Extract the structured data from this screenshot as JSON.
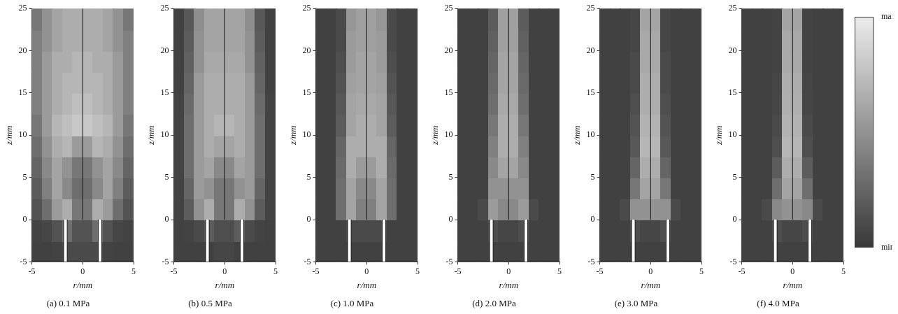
{
  "chart_data": [
    {
      "type": "heatmap",
      "title": "(a) 0.1 MPa",
      "x_label": "r/mm",
      "y_label": "z/mm",
      "xlim": [
        -5,
        5
      ],
      "ylim": [
        -5,
        25
      ],
      "xticks": [
        -5,
        0,
        5
      ],
      "yticks": [
        -5,
        0,
        5,
        10,
        15,
        20,
        25
      ],
      "grid": false,
      "r_edges": [
        -5,
        -4,
        -3,
        -2,
        -1,
        0,
        1,
        2,
        3,
        4,
        5
      ],
      "z_edges": [
        -5,
        -2.5,
        0,
        2.5,
        5,
        7.5,
        10,
        12.5,
        15,
        17.5,
        20,
        22.5,
        25
      ],
      "cells": [
        [
          0.05,
          0.05,
          0.06,
          0.1,
          0.1,
          0.1,
          0.1,
          0.06,
          0.05,
          0.05
        ],
        [
          0.06,
          0.08,
          0.15,
          0.3,
          0.15,
          0.15,
          0.3,
          0.15,
          0.08,
          0.06
        ],
        [
          0.15,
          0.3,
          0.55,
          0.65,
          0.35,
          0.35,
          0.65,
          0.55,
          0.3,
          0.15
        ],
        [
          0.2,
          0.4,
          0.6,
          0.45,
          0.3,
          0.3,
          0.45,
          0.6,
          0.4,
          0.2
        ],
        [
          0.25,
          0.45,
          0.6,
          0.5,
          0.35,
          0.35,
          0.5,
          0.6,
          0.45,
          0.25
        ],
        [
          0.3,
          0.5,
          0.65,
          0.7,
          0.55,
          0.55,
          0.7,
          0.65,
          0.5,
          0.3
        ],
        [
          0.35,
          0.55,
          0.7,
          0.75,
          0.8,
          0.8,
          0.75,
          0.7,
          0.55,
          0.35
        ],
        [
          0.4,
          0.55,
          0.65,
          0.7,
          0.75,
          0.75,
          0.7,
          0.65,
          0.55,
          0.4
        ],
        [
          0.4,
          0.55,
          0.65,
          0.7,
          0.7,
          0.7,
          0.7,
          0.65,
          0.55,
          0.4
        ],
        [
          0.4,
          0.55,
          0.65,
          0.65,
          0.7,
          0.7,
          0.65,
          0.65,
          0.55,
          0.4
        ],
        [
          0.4,
          0.5,
          0.6,
          0.65,
          0.65,
          0.65,
          0.65,
          0.6,
          0.5,
          0.4
        ],
        [
          0.35,
          0.5,
          0.6,
          0.65,
          0.65,
          0.65,
          0.65,
          0.6,
          0.5,
          0.35
        ]
      ],
      "nozzle_walls": {
        "r": [
          -1.7,
          1.7
        ],
        "z": [
          -5,
          0
        ]
      },
      "symmetry_axis": {
        "r": 0,
        "z": [
          0,
          25
        ]
      }
    },
    {
      "type": "heatmap",
      "title": "(b) 0.5 MPa",
      "x_label": "r/mm",
      "y_label": "z/mm",
      "xlim": [
        -5,
        5
      ],
      "ylim": [
        -5,
        25
      ],
      "xticks": [
        -5,
        0,
        5
      ],
      "yticks": [
        -5,
        0,
        5,
        10,
        15,
        20,
        25
      ],
      "grid": false,
      "r_edges": [
        -5,
        -4,
        -3,
        -2,
        -1,
        0,
        1,
        2,
        3,
        4,
        5
      ],
      "z_edges": [
        -5,
        -2.5,
        0,
        2.5,
        5,
        7.5,
        10,
        12.5,
        15,
        17.5,
        20,
        22.5,
        25
      ],
      "cells": [
        [
          0.05,
          0.05,
          0.05,
          0.05,
          0.08,
          0.08,
          0.05,
          0.05,
          0.05,
          0.05
        ],
        [
          0.05,
          0.06,
          0.1,
          0.2,
          0.12,
          0.12,
          0.2,
          0.1,
          0.06,
          0.05
        ],
        [
          0.06,
          0.2,
          0.5,
          0.65,
          0.35,
          0.35,
          0.65,
          0.5,
          0.2,
          0.06
        ],
        [
          0.06,
          0.25,
          0.55,
          0.5,
          0.35,
          0.35,
          0.5,
          0.55,
          0.25,
          0.06
        ],
        [
          0.06,
          0.3,
          0.55,
          0.6,
          0.45,
          0.45,
          0.6,
          0.55,
          0.3,
          0.06
        ],
        [
          0.06,
          0.3,
          0.55,
          0.65,
          0.6,
          0.6,
          0.65,
          0.55,
          0.3,
          0.06
        ],
        [
          0.06,
          0.3,
          0.55,
          0.65,
          0.7,
          0.7,
          0.65,
          0.55,
          0.3,
          0.06
        ],
        [
          0.06,
          0.28,
          0.55,
          0.65,
          0.65,
          0.65,
          0.65,
          0.55,
          0.28,
          0.06
        ],
        [
          0.05,
          0.25,
          0.55,
          0.65,
          0.65,
          0.65,
          0.65,
          0.55,
          0.25,
          0.05
        ],
        [
          0.05,
          0.22,
          0.5,
          0.62,
          0.62,
          0.62,
          0.62,
          0.5,
          0.22,
          0.05
        ],
        [
          0.05,
          0.2,
          0.5,
          0.6,
          0.6,
          0.6,
          0.6,
          0.5,
          0.2,
          0.05
        ],
        [
          0.05,
          0.18,
          0.48,
          0.6,
          0.6,
          0.6,
          0.6,
          0.48,
          0.18,
          0.05
        ]
      ],
      "nozzle_walls": {
        "r": [
          -1.7,
          1.7
        ],
        "z": [
          -5,
          0
        ]
      },
      "symmetry_axis": {
        "r": 0,
        "z": [
          0,
          25
        ]
      }
    },
    {
      "type": "heatmap",
      "title": "(c) 1.0 MPa",
      "x_label": "r/mm",
      "y_label": "z/mm",
      "xlim": [
        -5,
        5
      ],
      "ylim": [
        -5,
        25
      ],
      "xticks": [
        -5,
        0,
        5
      ],
      "yticks": [
        -5,
        0,
        5,
        10,
        15,
        20,
        25
      ],
      "grid": false,
      "r_edges": [
        -5,
        -4,
        -3,
        -2,
        -1,
        0,
        1,
        2,
        3,
        4,
        5
      ],
      "z_edges": [
        -5,
        -2.5,
        0,
        2.5,
        5,
        7.5,
        10,
        12.5,
        15,
        17.5,
        20,
        22.5,
        25
      ],
      "cells": [
        [
          0.05,
          0.05,
          0.05,
          0.05,
          0.05,
          0.05,
          0.05,
          0.05,
          0.05,
          0.05
        ],
        [
          0.05,
          0.05,
          0.05,
          0.1,
          0.1,
          0.1,
          0.1,
          0.05,
          0.05,
          0.05
        ],
        [
          0.05,
          0.05,
          0.3,
          0.6,
          0.4,
          0.4,
          0.6,
          0.3,
          0.05,
          0.05
        ],
        [
          0.05,
          0.05,
          0.3,
          0.6,
          0.45,
          0.45,
          0.6,
          0.3,
          0.05,
          0.05
        ],
        [
          0.05,
          0.05,
          0.28,
          0.65,
          0.55,
          0.55,
          0.65,
          0.28,
          0.05,
          0.05
        ],
        [
          0.05,
          0.05,
          0.25,
          0.65,
          0.65,
          0.65,
          0.65,
          0.25,
          0.05,
          0.05
        ],
        [
          0.05,
          0.05,
          0.2,
          0.6,
          0.65,
          0.65,
          0.6,
          0.2,
          0.05,
          0.05
        ],
        [
          0.05,
          0.05,
          0.18,
          0.6,
          0.62,
          0.62,
          0.6,
          0.18,
          0.05,
          0.05
        ],
        [
          0.05,
          0.05,
          0.15,
          0.58,
          0.6,
          0.6,
          0.58,
          0.15,
          0.05,
          0.05
        ],
        [
          0.05,
          0.05,
          0.12,
          0.55,
          0.6,
          0.6,
          0.55,
          0.12,
          0.05,
          0.05
        ],
        [
          0.05,
          0.05,
          0.1,
          0.55,
          0.58,
          0.58,
          0.55,
          0.1,
          0.05,
          0.05
        ],
        [
          0.05,
          0.05,
          0.1,
          0.52,
          0.58,
          0.58,
          0.52,
          0.1,
          0.05,
          0.05
        ]
      ],
      "nozzle_walls": {
        "r": [
          -1.7,
          1.7
        ],
        "z": [
          -5,
          0
        ]
      },
      "symmetry_axis": {
        "r": 0,
        "z": [
          0,
          25
        ]
      }
    },
    {
      "type": "heatmap",
      "title": "(d) 2.0 MPa",
      "x_label": "r/mm",
      "y_label": "z/mm",
      "xlim": [
        -5,
        5
      ],
      "ylim": [
        -5,
        25
      ],
      "xticks": [
        -5,
        0,
        5
      ],
      "yticks": [
        -5,
        0,
        5,
        10,
        15,
        20,
        25
      ],
      "grid": false,
      "r_edges": [
        -5,
        -4,
        -3,
        -2,
        -1,
        0,
        1,
        2,
        3,
        4,
        5
      ],
      "z_edges": [
        -5,
        -2.5,
        0,
        2.5,
        5,
        7.5,
        10,
        12.5,
        15,
        17.5,
        20,
        22.5,
        25
      ],
      "cells": [
        [
          0.05,
          0.05,
          0.05,
          0.05,
          0.05,
          0.05,
          0.05,
          0.05,
          0.05,
          0.05
        ],
        [
          0.05,
          0.05,
          0.05,
          0.12,
          0.08,
          0.08,
          0.12,
          0.05,
          0.05,
          0.05
        ],
        [
          0.05,
          0.05,
          0.1,
          0.55,
          0.45,
          0.45,
          0.55,
          0.1,
          0.05,
          0.05
        ],
        [
          0.05,
          0.05,
          0.05,
          0.5,
          0.5,
          0.5,
          0.5,
          0.05,
          0.05,
          0.05
        ],
        [
          0.05,
          0.05,
          0.05,
          0.45,
          0.6,
          0.6,
          0.45,
          0.05,
          0.05,
          0.05
        ],
        [
          0.05,
          0.05,
          0.05,
          0.4,
          0.65,
          0.65,
          0.4,
          0.05,
          0.05,
          0.05
        ],
        [
          0.05,
          0.05,
          0.05,
          0.35,
          0.65,
          0.65,
          0.35,
          0.05,
          0.05,
          0.05
        ],
        [
          0.05,
          0.05,
          0.05,
          0.3,
          0.62,
          0.62,
          0.3,
          0.05,
          0.05,
          0.05
        ],
        [
          0.05,
          0.05,
          0.05,
          0.28,
          0.6,
          0.6,
          0.28,
          0.05,
          0.05,
          0.05
        ],
        [
          0.05,
          0.05,
          0.05,
          0.25,
          0.6,
          0.6,
          0.25,
          0.05,
          0.05,
          0.05
        ],
        [
          0.05,
          0.05,
          0.05,
          0.22,
          0.58,
          0.58,
          0.22,
          0.05,
          0.05,
          0.05
        ],
        [
          0.05,
          0.05,
          0.05,
          0.2,
          0.58,
          0.58,
          0.2,
          0.05,
          0.05,
          0.05
        ]
      ],
      "nozzle_walls": {
        "r": [
          -1.7,
          1.7
        ],
        "z": [
          -5,
          0
        ]
      },
      "symmetry_axis": {
        "r": 0,
        "z": [
          0,
          25
        ]
      }
    },
    {
      "type": "heatmap",
      "title": "(e) 3.0 MPa",
      "x_label": "r/mm",
      "y_label": "z/mm",
      "xlim": [
        -5,
        5
      ],
      "ylim": [
        -5,
        25
      ],
      "xticks": [
        -5,
        0,
        5
      ],
      "yticks": [
        -5,
        0,
        5,
        10,
        15,
        20,
        25
      ],
      "grid": false,
      "r_edges": [
        -5,
        -4,
        -3,
        -2,
        -1,
        0,
        1,
        2,
        3,
        4,
        5
      ],
      "z_edges": [
        -5,
        -2.5,
        0,
        2.5,
        5,
        7.5,
        10,
        12.5,
        15,
        17.5,
        20,
        22.5,
        25
      ],
      "cells": [
        [
          0.05,
          0.05,
          0.05,
          0.05,
          0.05,
          0.05,
          0.05,
          0.05,
          0.05,
          0.05
        ],
        [
          0.05,
          0.05,
          0.05,
          0.12,
          0.08,
          0.08,
          0.12,
          0.05,
          0.05,
          0.05
        ],
        [
          0.05,
          0.05,
          0.1,
          0.5,
          0.5,
          0.5,
          0.5,
          0.1,
          0.05,
          0.05
        ],
        [
          0.05,
          0.05,
          0.05,
          0.35,
          0.6,
          0.6,
          0.35,
          0.05,
          0.05,
          0.05
        ],
        [
          0.05,
          0.05,
          0.05,
          0.25,
          0.65,
          0.65,
          0.25,
          0.05,
          0.05,
          0.05
        ],
        [
          0.05,
          0.05,
          0.05,
          0.18,
          0.7,
          0.7,
          0.18,
          0.05,
          0.05,
          0.05
        ],
        [
          0.05,
          0.05,
          0.05,
          0.15,
          0.68,
          0.68,
          0.15,
          0.05,
          0.05,
          0.05
        ],
        [
          0.05,
          0.05,
          0.05,
          0.12,
          0.65,
          0.65,
          0.12,
          0.05,
          0.05,
          0.05
        ],
        [
          0.05,
          0.05,
          0.05,
          0.1,
          0.65,
          0.65,
          0.1,
          0.05,
          0.05,
          0.05
        ],
        [
          0.05,
          0.05,
          0.05,
          0.1,
          0.62,
          0.62,
          0.1,
          0.05,
          0.05,
          0.05
        ],
        [
          0.05,
          0.05,
          0.05,
          0.08,
          0.62,
          0.62,
          0.08,
          0.05,
          0.05,
          0.05
        ],
        [
          0.05,
          0.05,
          0.05,
          0.08,
          0.6,
          0.6,
          0.08,
          0.05,
          0.05,
          0.05
        ]
      ],
      "nozzle_walls": {
        "r": [
          -1.7,
          1.7
        ],
        "z": [
          -5,
          0
        ]
      },
      "symmetry_axis": {
        "r": 0,
        "z": [
          0,
          25
        ]
      }
    },
    {
      "type": "heatmap",
      "title": "(f) 4.0 MPa",
      "x_label": "r/mm",
      "y_label": "z/mm",
      "xlim": [
        -5,
        5
      ],
      "ylim": [
        -5,
        25
      ],
      "xticks": [
        -5,
        0,
        5
      ],
      "yticks": [
        -5,
        0,
        5,
        10,
        15,
        20,
        25
      ],
      "grid": false,
      "r_edges": [
        -5,
        -4,
        -3,
        -2,
        -1,
        0,
        1,
        2,
        3,
        4,
        5
      ],
      "z_edges": [
        -5,
        -2.5,
        0,
        2.5,
        5,
        7.5,
        10,
        12.5,
        15,
        17.5,
        20,
        22.5,
        25
      ],
      "cells": [
        [
          0.05,
          0.05,
          0.05,
          0.05,
          0.05,
          0.05,
          0.05,
          0.05,
          0.05,
          0.05
        ],
        [
          0.05,
          0.05,
          0.05,
          0.12,
          0.08,
          0.08,
          0.12,
          0.05,
          0.05,
          0.05
        ],
        [
          0.05,
          0.05,
          0.1,
          0.45,
          0.5,
          0.5,
          0.45,
          0.1,
          0.05,
          0.05
        ],
        [
          0.05,
          0.05,
          0.05,
          0.3,
          0.6,
          0.6,
          0.3,
          0.05,
          0.05,
          0.05
        ],
        [
          0.05,
          0.05,
          0.05,
          0.2,
          0.65,
          0.65,
          0.2,
          0.05,
          0.05,
          0.05
        ],
        [
          0.05,
          0.05,
          0.05,
          0.12,
          0.7,
          0.7,
          0.12,
          0.05,
          0.05,
          0.05
        ],
        [
          0.05,
          0.05,
          0.05,
          0.1,
          0.68,
          0.68,
          0.1,
          0.05,
          0.05,
          0.05
        ],
        [
          0.05,
          0.05,
          0.05,
          0.08,
          0.66,
          0.66,
          0.08,
          0.05,
          0.05,
          0.05
        ],
        [
          0.05,
          0.05,
          0.05,
          0.07,
          0.65,
          0.65,
          0.07,
          0.05,
          0.05,
          0.05
        ],
        [
          0.05,
          0.05,
          0.05,
          0.06,
          0.63,
          0.63,
          0.06,
          0.05,
          0.05,
          0.05
        ],
        [
          0.05,
          0.05,
          0.05,
          0.06,
          0.62,
          0.62,
          0.06,
          0.05,
          0.05,
          0.05
        ],
        [
          0.05,
          0.05,
          0.05,
          0.06,
          0.6,
          0.6,
          0.06,
          0.05,
          0.05,
          0.05
        ]
      ],
      "nozzle_walls": {
        "r": [
          -1.7,
          1.7
        ],
        "z": [
          -5,
          0
        ]
      },
      "symmetry_axis": {
        "r": 0,
        "z": [
          0,
          25
        ]
      }
    }
  ],
  "colorbar": {
    "range": [
      0,
      1
    ],
    "ticks": [
      {
        "value": 0,
        "label": "min"
      },
      {
        "value": 1,
        "label": "max"
      }
    ]
  }
}
